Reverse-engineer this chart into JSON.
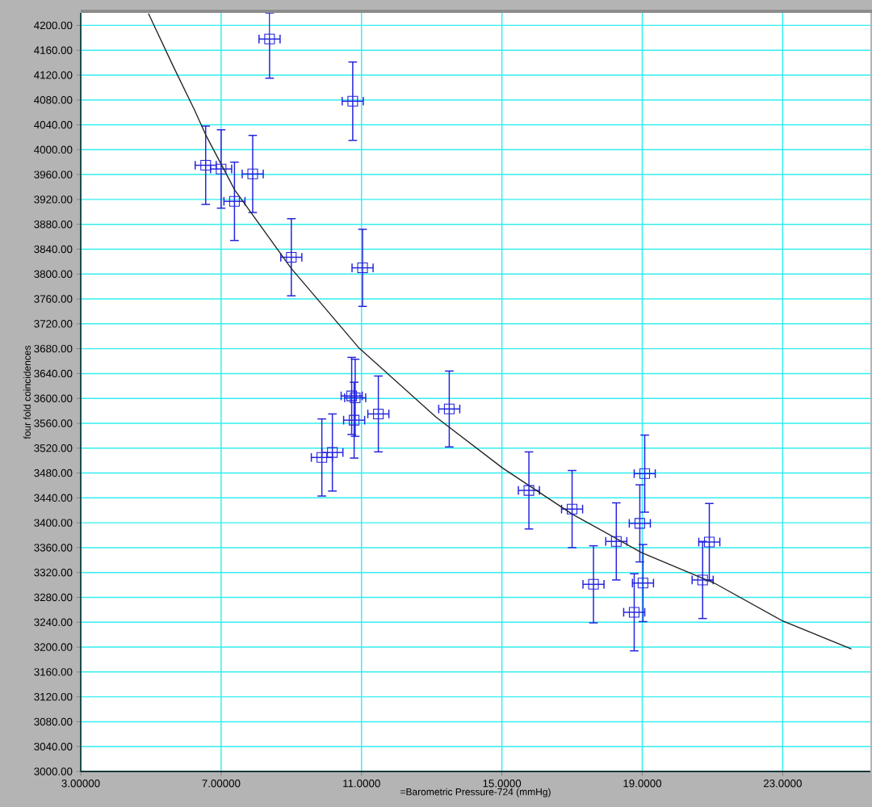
{
  "chart_data": {
    "type": "scatter",
    "xlabel": "=Barometric Pressure-724 (mmHg)",
    "ylabel": "four fold coincidences",
    "xlim": [
      3,
      25.5
    ],
    "ylim": [
      3000,
      4220
    ],
    "xticks": [
      {
        "value": 3,
        "label": "3.00000"
      },
      {
        "value": 7,
        "label": "7.00000"
      },
      {
        "value": 11,
        "label": "11.0000"
      },
      {
        "value": 15,
        "label": "15.0000"
      },
      {
        "value": 19,
        "label": "19.0000"
      },
      {
        "value": 23,
        "label": "23.0000"
      }
    ],
    "yticks": [
      {
        "value": 3000,
        "label": "3000.00"
      },
      {
        "value": 3040,
        "label": "3040.00"
      },
      {
        "value": 3080,
        "label": "3080.00"
      },
      {
        "value": 3120,
        "label": "3120.00"
      },
      {
        "value": 3160,
        "label": "3160.00"
      },
      {
        "value": 3200,
        "label": "3200.00"
      },
      {
        "value": 3240,
        "label": "3240.00"
      },
      {
        "value": 3280,
        "label": "3280.00"
      },
      {
        "value": 3320,
        "label": "3320.00"
      },
      {
        "value": 3360,
        "label": "3360.00"
      },
      {
        "value": 3400,
        "label": "3400.00"
      },
      {
        "value": 3440,
        "label": "3440.00"
      },
      {
        "value": 3480,
        "label": "3480.00"
      },
      {
        "value": 3520,
        "label": "3520.00"
      },
      {
        "value": 3560,
        "label": "3560.00"
      },
      {
        "value": 3600,
        "label": "3600.00"
      },
      {
        "value": 3640,
        "label": "3640.00"
      },
      {
        "value": 3680,
        "label": "3680.00"
      },
      {
        "value": 3720,
        "label": "3720.00"
      },
      {
        "value": 3760,
        "label": "3760.00"
      },
      {
        "value": 3800,
        "label": "3800.00"
      },
      {
        "value": 3840,
        "label": "3840.00"
      },
      {
        "value": 3880,
        "label": "3880.00"
      },
      {
        "value": 3920,
        "label": "3920.00"
      },
      {
        "value": 3960,
        "label": "3960.00"
      },
      {
        "value": 4000,
        "label": "4000.00"
      },
      {
        "value": 4040,
        "label": "4040.00"
      },
      {
        "value": 4080,
        "label": "4080.00"
      },
      {
        "value": 4120,
        "label": "4120.00"
      },
      {
        "value": 4160,
        "label": "4160.00"
      },
      {
        "value": 4200,
        "label": "4200.00"
      }
    ],
    "grid": true,
    "series": [
      {
        "color": "#2222dd",
        "marker": "square",
        "x": [
          8.38,
          10.75,
          6.56,
          7.0,
          7.38,
          7.9,
          9.0,
          11.03,
          9.87,
          10.17,
          10.72,
          10.82,
          10.79,
          11.48,
          13.5,
          15.77,
          17.0,
          17.61,
          18.26,
          19.07,
          18.93,
          19.02,
          18.77,
          20.91,
          20.72
        ],
        "values": [
          4178,
          4078,
          3975,
          3969,
          3917,
          3961,
          3827,
          3810,
          3505,
          3513,
          3604,
          3601,
          3565,
          3575,
          3583,
          3452,
          3422,
          3301,
          3370,
          3479,
          3399,
          3303,
          3256,
          3369,
          3308
        ],
        "errors": [
          [
            4115,
            4220
          ],
          63,
          63,
          63,
          63,
          62,
          62,
          62,
          62,
          62,
          62,
          62,
          61,
          61,
          61,
          62,
          62,
          62,
          62,
          62,
          62,
          62,
          62,
          62,
          62
        ],
        "xerrors": [
          0.3,
          0.3,
          0.3,
          0.3,
          0.3,
          0.3,
          0.3,
          0.3,
          0.3,
          0.3,
          0.3,
          0.3,
          0.3,
          0.3,
          0.3,
          0.3,
          0.3,
          0.3,
          0.3,
          0.3,
          0.3,
          0.3,
          0.3,
          0.3,
          0.3
        ]
      },
      {
        "type": "line",
        "color": "#222222",
        "marker": "none",
        "line_style": "solid",
        "x": [
          4.93,
          5.62,
          6.24,
          6.56,
          7.39,
          9.0,
          10.93,
          13.12,
          15.02,
          17.0,
          18.98,
          21.05,
          23.0,
          24.96
        ],
        "values": [
          4219,
          4136,
          4064,
          4024,
          3935,
          3809,
          3681,
          3570,
          3488,
          3414,
          3352,
          3303,
          3242,
          3197
        ]
      }
    ]
  }
}
